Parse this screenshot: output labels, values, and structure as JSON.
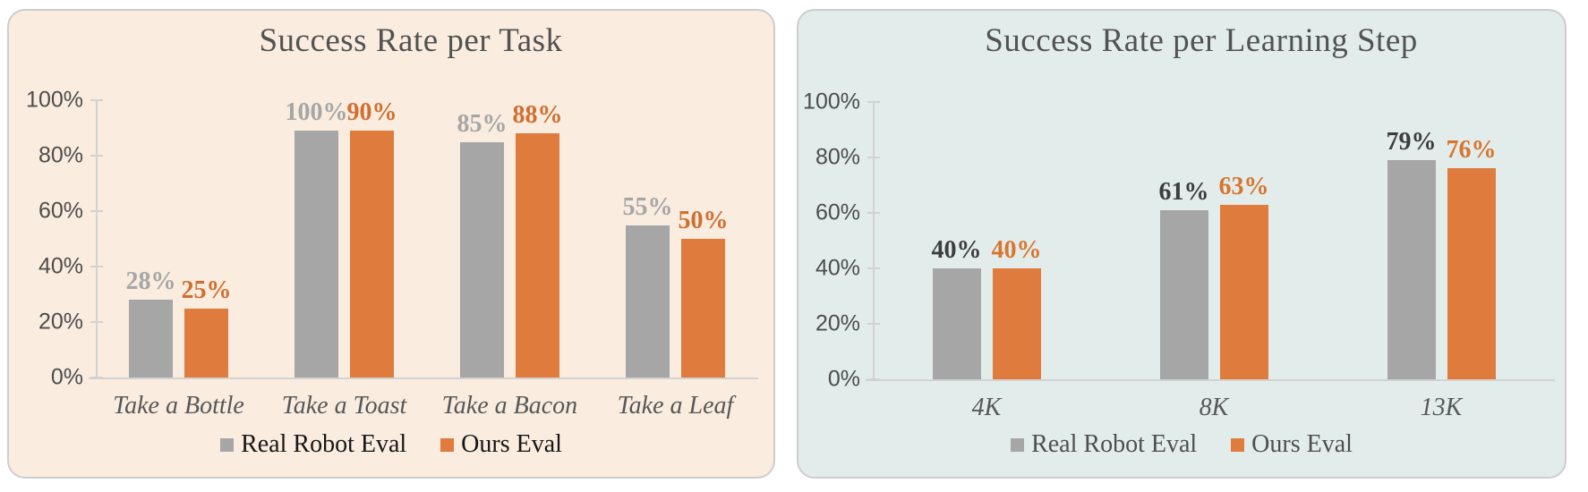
{
  "chart_data": [
    {
      "type": "bar",
      "title": "Success Rate per Task",
      "categories": [
        "Take a Bottle",
        "Take a Toast",
        "Take a Bacon",
        "Take a Leaf"
      ],
      "series": [
        {
          "name": "Real Robot Eval",
          "values": [
            28,
            100,
            85,
            55
          ],
          "labels": [
            "28%",
            "100%",
            "85%",
            "55%"
          ],
          "color": "#a6a6a6",
          "label_color": "#a6a6a6"
        },
        {
          "name": "Ours Eval",
          "values": [
            25,
            90,
            88,
            50
          ],
          "labels": [
            "25%",
            "90%",
            "88%",
            "50%"
          ],
          "color": "#de7b3d",
          "label_color": "#d06f30"
        }
      ],
      "xlabel": "",
      "ylabel": "",
      "ylim": [
        0,
        100
      ],
      "yticks": [
        0,
        20,
        40,
        60,
        80,
        100
      ],
      "ytick_labels": [
        "0%",
        "20%",
        "40%",
        "60%",
        "80%",
        "100%"
      ],
      "grid": false,
      "legend_position": "bottom",
      "panel_background": "#faecdf",
      "legend_text_color": "#161616",
      "axis_color": "#d2d2d2"
    },
    {
      "type": "bar",
      "title": "Success Rate per Learning Step",
      "categories": [
        "4K",
        "8K",
        "13K"
      ],
      "series": [
        {
          "name": "Real Robot Eval",
          "values": [
            40,
            61,
            79
          ],
          "labels": [
            "40%",
            "61%",
            "79%"
          ],
          "color": "#a6a6a6",
          "label_color": "#3d3d3d"
        },
        {
          "name": "Ours Eval",
          "values": [
            40,
            63,
            76
          ],
          "labels": [
            "40%",
            "63%",
            "76%"
          ],
          "color": "#de7b3d",
          "label_color": "#d8752e"
        }
      ],
      "xlabel": "",
      "ylabel": "",
      "ylim": [
        0,
        100
      ],
      "yticks": [
        0,
        20,
        40,
        60,
        80,
        100
      ],
      "ytick_labels": [
        "0%",
        "20%",
        "40%",
        "60%",
        "80%",
        "100%"
      ],
      "grid": false,
      "legend_position": "bottom",
      "panel_background": "#e2edeb",
      "legend_text_color": "#4e4e4e",
      "axis_color": "#d2d2d2"
    }
  ]
}
